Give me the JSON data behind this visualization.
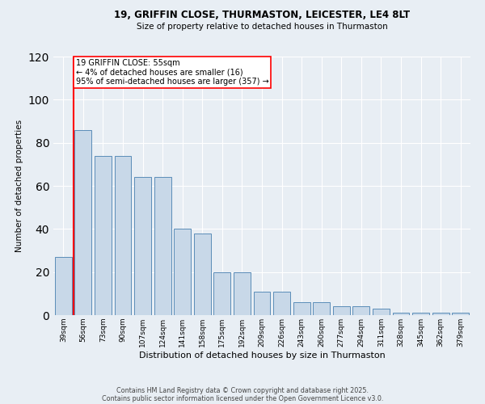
{
  "title1": "19, GRIFFIN CLOSE, THURMASTON, LEICESTER, LE4 8LT",
  "title2": "Size of property relative to detached houses in Thurmaston",
  "xlabel": "Distribution of detached houses by size in Thurmaston",
  "ylabel": "Number of detached properties",
  "categories": [
    "39sqm",
    "56sqm",
    "73sqm",
    "90sqm",
    "107sqm",
    "124sqm",
    "141sqm",
    "158sqm",
    "175sqm",
    "192sqm",
    "209sqm",
    "226sqm",
    "243sqm",
    "260sqm",
    "277sqm",
    "294sqm",
    "311sqm",
    "328sqm",
    "345sqm",
    "362sqm",
    "379sqm"
  ],
  "values": [
    27,
    86,
    74,
    74,
    64,
    64,
    40,
    38,
    20,
    20,
    11,
    11,
    6,
    6,
    4,
    4,
    3,
    1,
    1,
    1,
    1
  ],
  "bar_color": "#c8d8e8",
  "bar_edge_color": "#5b8db8",
  "annotation_text": "19 GRIFFIN CLOSE: 55sqm\n← 4% of detached houses are smaller (16)\n95% of semi-detached houses are larger (357) →",
  "ylim": [
    0,
    120
  ],
  "yticks": [
    0,
    20,
    40,
    60,
    80,
    100,
    120
  ],
  "footer1": "Contains HM Land Registry data © Crown copyright and database right 2025.",
  "footer2": "Contains public sector information licensed under the Open Government Licence v3.0.",
  "background_color": "#e8eef4"
}
